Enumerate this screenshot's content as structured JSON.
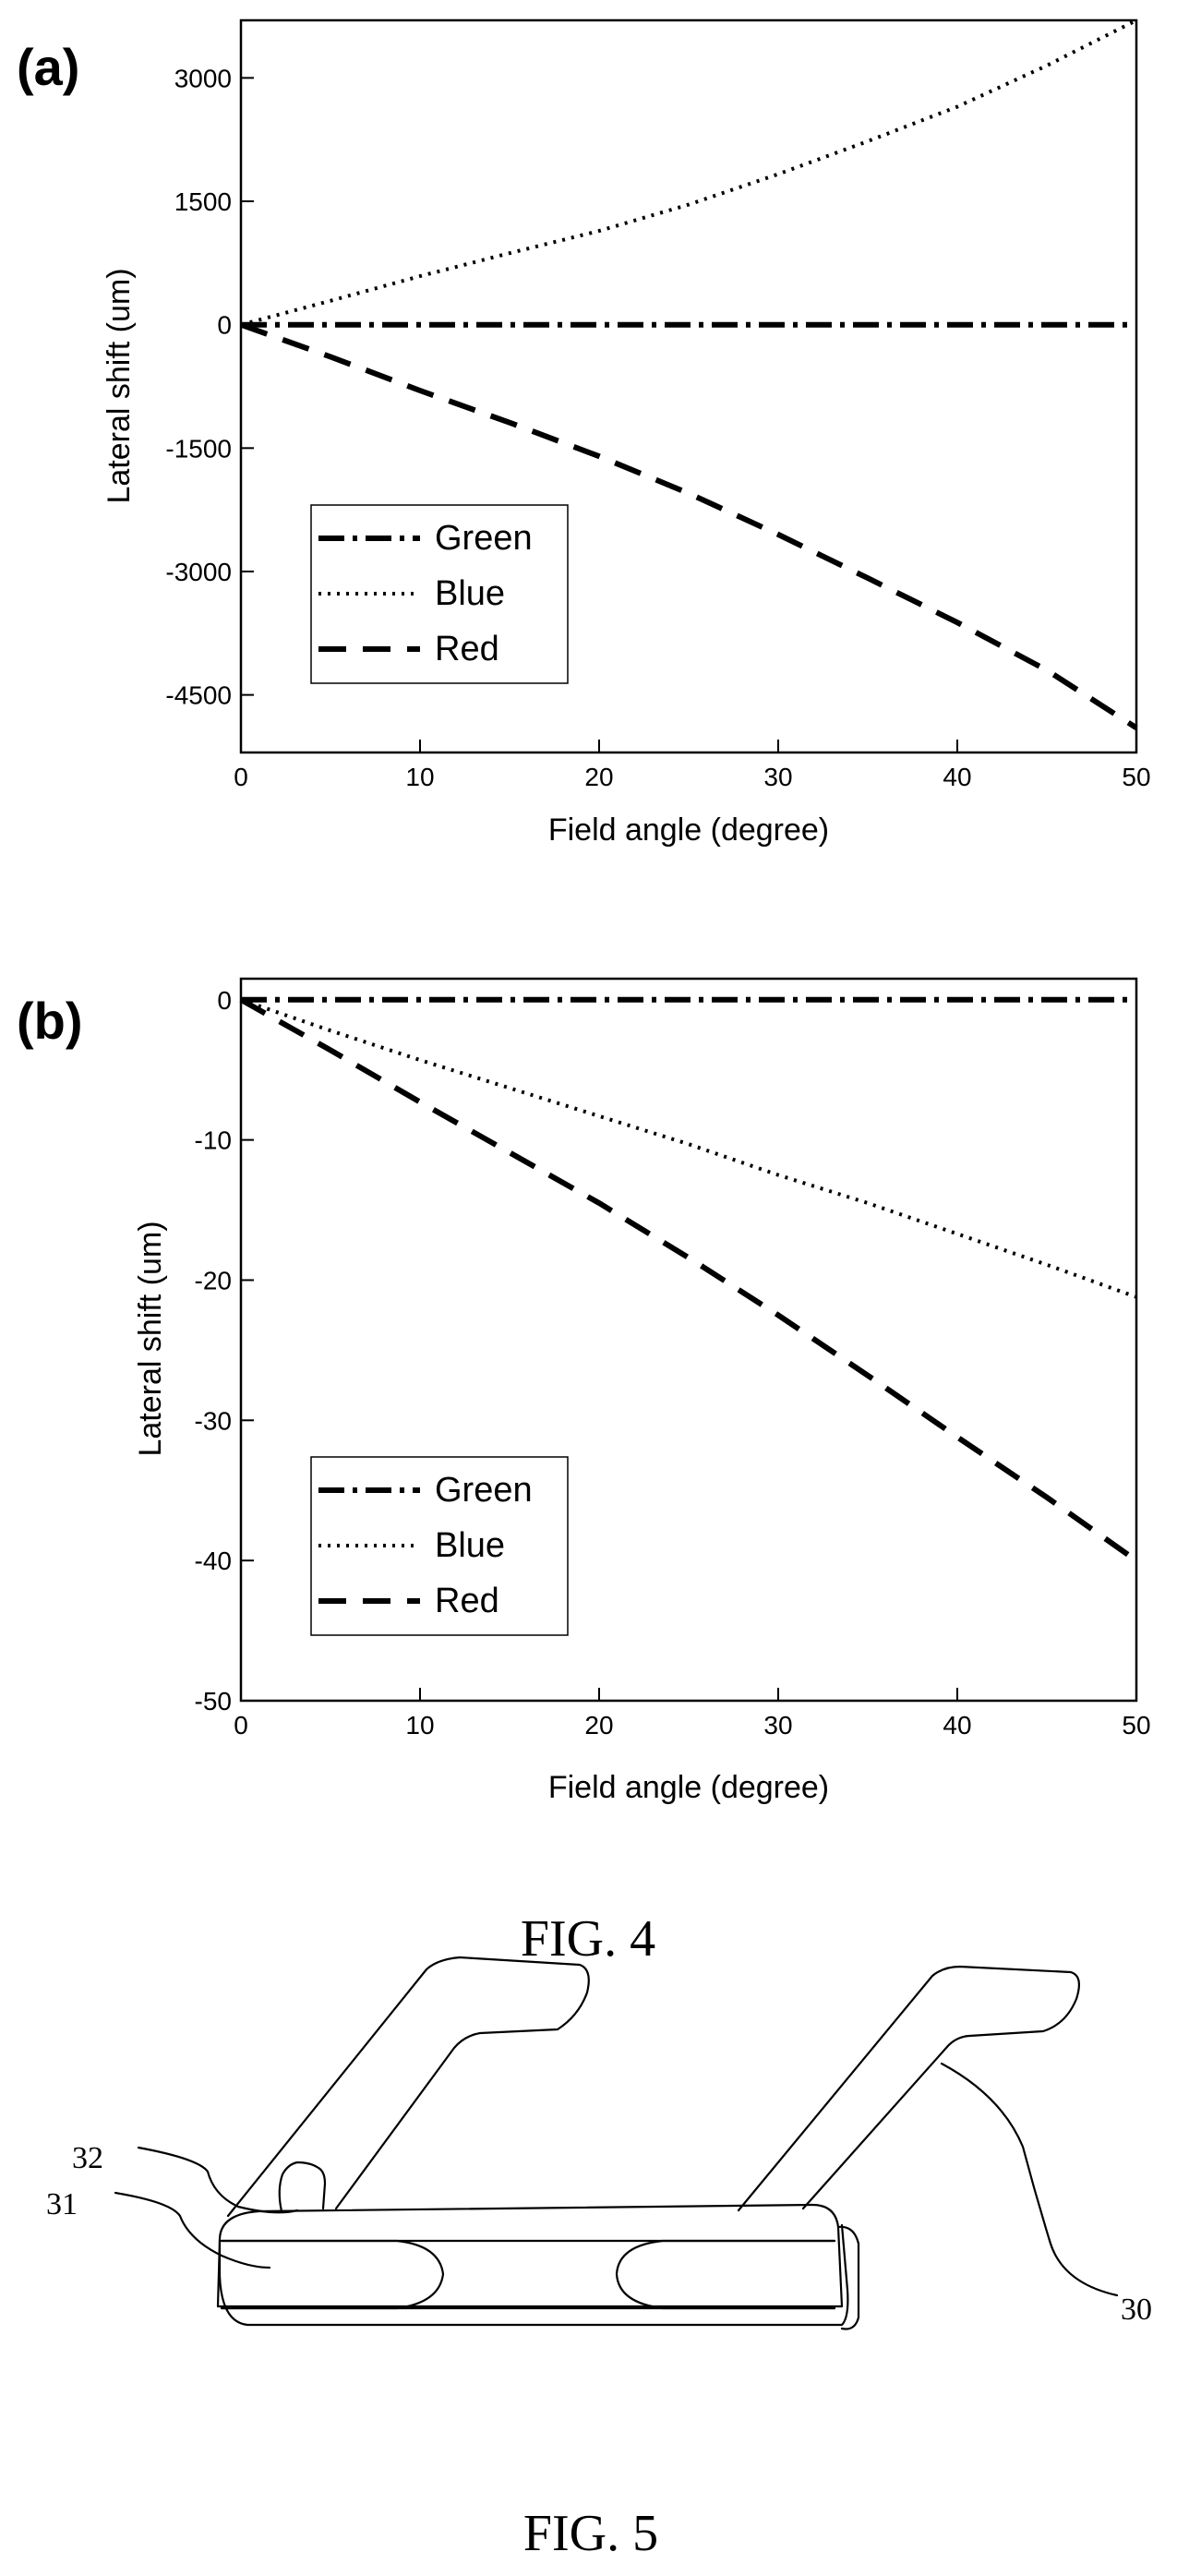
{
  "figure4": {
    "caption": "FIG. 4",
    "panels": [
      {
        "tag": "(a)"
      },
      {
        "tag": "(b)"
      }
    ]
  },
  "figure5": {
    "caption": "FIG. 5",
    "labels": {
      "l30": "30",
      "l31": "31",
      "l32": "32"
    }
  },
  "chart_data": [
    {
      "type": "line",
      "panel_label": "(a)",
      "xlabel": "Field angle (degree)",
      "ylabel": "Lateral shift (um)",
      "xlim": [
        0,
        50
      ],
      "ylim": [
        -5200,
        3700
      ],
      "xticks": [
        0,
        10,
        20,
        30,
        40,
        50
      ],
      "yticks": [
        -4500,
        -3000,
        -1500,
        0,
        1500,
        3000
      ],
      "grid": false,
      "legend_position": "bottom-left",
      "series": [
        {
          "name": "Green",
          "style": "dash-dot",
          "x": [
            0,
            10,
            20,
            30,
            40,
            50
          ],
          "y": [
            0,
            0,
            0,
            0,
            0,
            0
          ]
        },
        {
          "name": "Blue",
          "style": "dotted",
          "x": [
            0,
            5,
            10,
            15,
            20,
            25,
            30,
            35,
            40,
            45,
            50
          ],
          "y": [
            0,
            290,
            590,
            870,
            1140,
            1460,
            1830,
            2230,
            2650,
            3150,
            3700
          ]
        },
        {
          "name": "Red",
          "style": "dashed",
          "x": [
            0,
            5,
            10,
            15,
            20,
            25,
            30,
            35,
            40,
            45,
            50
          ],
          "y": [
            0,
            -390,
            -800,
            -1190,
            -1600,
            -2050,
            -2550,
            -3080,
            -3620,
            -4200,
            -4900
          ]
        }
      ]
    },
    {
      "type": "line",
      "panel_label": "(b)",
      "xlabel": "Field angle (degree)",
      "ylabel": "Lateral shift (um)",
      "xlim": [
        0,
        50
      ],
      "ylim": [
        -50,
        1.5
      ],
      "xticks": [
        0,
        10,
        20,
        30,
        40,
        50
      ],
      "yticks": [
        -50,
        -40,
        -30,
        -20,
        -10,
        0
      ],
      "grid": false,
      "legend_position": "bottom-left",
      "series": [
        {
          "name": "Green",
          "style": "dash-dot",
          "x": [
            0,
            10,
            20,
            30,
            40,
            50
          ],
          "y": [
            0,
            0,
            0,
            0,
            0,
            0
          ]
        },
        {
          "name": "Blue",
          "style": "dotted",
          "x": [
            0,
            5,
            10,
            15,
            20,
            25,
            30,
            35,
            40,
            45,
            50
          ],
          "y": [
            0,
            -2.2,
            -4.3,
            -6.3,
            -8.3,
            -10.3,
            -12.5,
            -14.5,
            -16.7,
            -18.9,
            -21.2
          ]
        },
        {
          "name": "Red",
          "style": "dashed",
          "x": [
            0,
            5,
            10,
            15,
            20,
            25,
            30,
            35,
            40,
            45,
            50
          ],
          "y": [
            0,
            -3.6,
            -7.3,
            -10.9,
            -14.5,
            -18.4,
            -22.5,
            -26.8,
            -31.2,
            -35.5,
            -40.0
          ]
        }
      ]
    }
  ]
}
